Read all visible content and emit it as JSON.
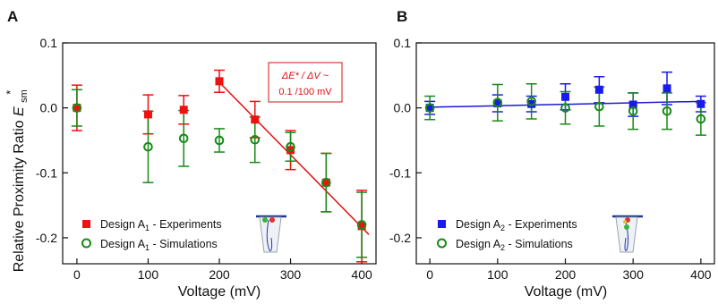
{
  "figure": {
    "ylabel": "Relative Proximity Ratio",
    "ylabel_symbol": "E",
    "ylabel_sub": "sm",
    "ylabel_sup": "*"
  },
  "chart_data": [
    {
      "panel": "A",
      "type": "scatter",
      "xlabel": "Voltage (mV)",
      "xlim": [
        -20,
        420
      ],
      "ylim": [
        -0.24,
        0.1
      ],
      "xticks": [
        0,
        100,
        200,
        300,
        400
      ],
      "yticks": [
        0.1,
        0.0,
        -0.1,
        -0.2
      ],
      "ytick_labels": [
        "0.1",
        "0.0",
        "-0.1",
        "-0.2"
      ],
      "legend_position": "bottom-left",
      "annotation": {
        "line1": "ΔE* / ΔV ~",
        "line2": "0.1 /100 mV",
        "color": "#dd1111"
      },
      "fit_line": {
        "x": [
          195,
          410
        ],
        "y": [
          0.045,
          -0.195
        ],
        "color": "#dd1111"
      },
      "series": [
        {
          "name": "Design A",
          "name_sub": "1",
          "name_suffix": " - Experiments",
          "marker": "square",
          "color": "#ee1111",
          "x": [
            0,
            100,
            150,
            200,
            250,
            300,
            350,
            400
          ],
          "y": [
            0.0,
            -0.01,
            -0.003,
            0.041,
            -0.018,
            -0.065,
            -0.115,
            -0.182
          ],
          "yerr": [
            0.035,
            0.03,
            0.022,
            0.017,
            0.028,
            0.03,
            0.045,
            0.055
          ]
        },
        {
          "name": "Design A",
          "name_sub": "1",
          "name_suffix": " - Simulations",
          "marker": "circle",
          "color": "#1a8a1a",
          "x": [
            0,
            100,
            150,
            200,
            250,
            300,
            350,
            400
          ],
          "y": [
            0.0,
            -0.06,
            -0.047,
            -0.05,
            -0.049,
            -0.06,
            -0.115,
            -0.18
          ],
          "yerr": [
            0.028,
            0.055,
            0.043,
            0.018,
            0.035,
            0.022,
            0.045,
            0.05
          ]
        }
      ]
    },
    {
      "panel": "B",
      "type": "scatter",
      "xlabel": "Voltage (mV)",
      "xlim": [
        -20,
        420
      ],
      "ylim": [
        -0.24,
        0.1
      ],
      "xticks": [
        0,
        100,
        200,
        300,
        400
      ],
      "yticks": [
        0.1,
        0.0,
        -0.1,
        -0.2
      ],
      "ytick_labels": [
        "0.1",
        "0.0",
        "-0.1",
        "-0.2"
      ],
      "legend_position": "bottom-left",
      "fit_line": {
        "x": [
          0,
          400
        ],
        "y": [
          0.001,
          0.01
        ],
        "color": "#1a1acc"
      },
      "series": [
        {
          "name": "Design A",
          "name_sub": "2",
          "name_suffix": " - Experiments",
          "marker": "square",
          "color": "#1a1aee",
          "x": [
            0,
            100,
            150,
            200,
            250,
            300,
            350,
            400
          ],
          "y": [
            0.0,
            0.007,
            0.006,
            0.017,
            0.028,
            0.005,
            0.03,
            0.006
          ],
          "yerr": [
            0.01,
            0.013,
            0.012,
            0.02,
            0.02,
            0.018,
            0.025,
            0.012
          ]
        },
        {
          "name": "Design A",
          "name_sub": "2",
          "name_suffix": " - Simulations",
          "marker": "circle",
          "color": "#1a8a1a",
          "x": [
            0,
            100,
            150,
            200,
            250,
            300,
            350,
            400
          ],
          "y": [
            0.0,
            0.008,
            0.01,
            0.0,
            0.002,
            -0.005,
            -0.005,
            -0.017
          ],
          "yerr": [
            0.018,
            0.028,
            0.027,
            0.025,
            0.03,
            0.028,
            0.028,
            0.025
          ]
        }
      ]
    }
  ]
}
